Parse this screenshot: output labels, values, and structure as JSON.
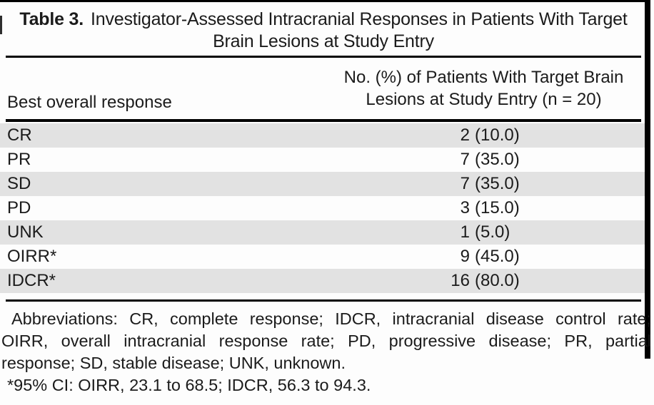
{
  "table": {
    "caption_number": "Table 3.",
    "caption_text": "Investigator-Assessed Intracranial Responses in Patients With Target Brain Lesions at Study Entry",
    "columns": {
      "response": "Best overall response",
      "value_line1": "No. (%) of Patients With Target Brain",
      "value_line2": "Lesions at Study Entry (n = 20)"
    },
    "rows": [
      {
        "label": "CR",
        "n": "2",
        "pct": "(10.0)"
      },
      {
        "label": "PR",
        "n": "7",
        "pct": "(35.0)"
      },
      {
        "label": "SD",
        "n": "7",
        "pct": "(35.0)"
      },
      {
        "label": "PD",
        "n": "3",
        "pct": "(15.0)"
      },
      {
        "label": "UNK",
        "n": "1",
        "pct": "(5.0)"
      },
      {
        "label": "OIRR*",
        "n": "9",
        "pct": "(45.0)"
      },
      {
        "label": "IDCR*",
        "n": "16",
        "pct": "(80.0)"
      }
    ]
  },
  "footnotes": {
    "abbreviations_lines": [
      "Abbreviations: CR, complete response; IDCR, intracranial disease control rate;",
      "OIRR, overall intracranial response rate; PD, progressive disease; PR, partial",
      "response; SD, stable disease; UNK, unknown."
    ],
    "ci_line": "*95% CI: OIRR, 23.1 to 68.5; IDCR, 56.3 to 94.3."
  },
  "colors": {
    "stripe": "#e2e2e2",
    "rule": "#000000",
    "text": "#1b1b1b"
  }
}
